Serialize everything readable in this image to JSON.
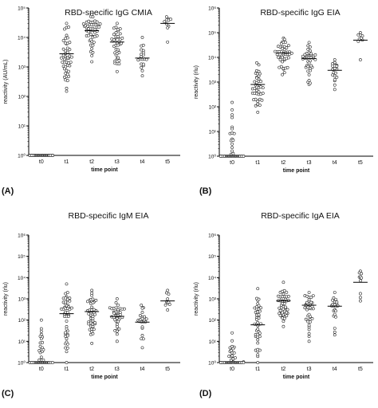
{
  "figure": {
    "colors": {
      "axis": "#000000",
      "marker_stroke": "#222222",
      "marker_fill": "#ffffff",
      "median_line": "#000000"
    }
  },
  "chart_data": [
    {
      "type": "scatter",
      "panel_label": "(A)",
      "title": "RBD-specific IgG CMIA",
      "xlabel": "time point",
      "ylabel": "reactivity (AU/mL)",
      "categories": [
        "t0",
        "t1",
        "t2",
        "t3",
        "t4",
        "t5"
      ],
      "scale": "log10",
      "ylim": [
        1,
        100000
      ],
      "yticks": [
        1,
        10,
        100,
        1000,
        10000,
        100000
      ],
      "ytick_labels": [
        "10⁰",
        "10¹",
        "10²",
        "10³",
        "10⁴",
        "10⁵"
      ],
      "series": [
        {
          "category": "t0",
          "n": 40,
          "median": 1,
          "min": 1,
          "max": 1
        },
        {
          "category": "t1",
          "n": 48,
          "median": 2800,
          "min": 150,
          "max": 30000
        },
        {
          "category": "t2",
          "n": 50,
          "median": 17000,
          "min": 1500,
          "max": 60000
        },
        {
          "category": "t3",
          "n": 40,
          "median": 7000,
          "min": 700,
          "max": 30000
        },
        {
          "category": "t4",
          "n": 20,
          "median": 2000,
          "min": 500,
          "max": 10000
        },
        {
          "category": "t5",
          "n": 10,
          "median": 30000,
          "min": 7000,
          "max": 50000
        }
      ]
    },
    {
      "type": "scatter",
      "panel_label": "(B)",
      "title": "RBD-specific IgG EIA",
      "xlabel": "time point",
      "ylabel": "reactivity (rlu)",
      "categories": [
        "t0",
        "t1",
        "t2",
        "t3",
        "t4",
        "t5"
      ],
      "scale": "log10",
      "ylim": [
        1,
        1000000
      ],
      "yticks": [
        1,
        10,
        100,
        1000,
        10000,
        100000,
        1000000
      ],
      "ytick_labels": [
        "10⁰",
        "10¹",
        "10²",
        "10³",
        "10⁴",
        "10⁵",
        "10⁶"
      ],
      "series": [
        {
          "category": "t0",
          "n": 42,
          "median": 1,
          "min": 1,
          "max": 150
        },
        {
          "category": "t1",
          "n": 42,
          "median": 800,
          "min": 60,
          "max": 6000
        },
        {
          "category": "t2",
          "n": 46,
          "median": 15000,
          "min": 2000,
          "max": 60000
        },
        {
          "category": "t3",
          "n": 38,
          "median": 9000,
          "min": 800,
          "max": 40000
        },
        {
          "category": "t4",
          "n": 20,
          "median": 3000,
          "min": 500,
          "max": 8000
        },
        {
          "category": "t5",
          "n": 10,
          "median": 50000,
          "min": 8000,
          "max": 100000
        }
      ]
    },
    {
      "type": "scatter",
      "panel_label": "(C)",
      "title": "RBD-specific IgM EIA",
      "xlabel": "time point",
      "ylabel": "reactivity (rlu)",
      "categories": [
        "t0",
        "t1",
        "t2",
        "t3",
        "t4",
        "t5"
      ],
      "scale": "log10",
      "ylim": [
        1,
        1000000
      ],
      "yticks": [
        1,
        10,
        100,
        1000,
        10000,
        100000,
        1000000
      ],
      "ytick_labels": [
        "10⁰",
        "10¹",
        "10²",
        "10³",
        "10⁴",
        "10⁵",
        "10⁶"
      ],
      "series": [
        {
          "category": "t0",
          "n": 42,
          "median": 1,
          "min": 1,
          "max": 100
        },
        {
          "category": "t1",
          "n": 48,
          "median": 200,
          "min": 1,
          "max": 5000
        },
        {
          "category": "t2",
          "n": 46,
          "median": 250,
          "min": 8,
          "max": 2500
        },
        {
          "category": "t3",
          "n": 38,
          "median": 150,
          "min": 10,
          "max": 1000
        },
        {
          "category": "t4",
          "n": 22,
          "median": 80,
          "min": 5,
          "max": 500
        },
        {
          "category": "t5",
          "n": 10,
          "median": 800,
          "min": 300,
          "max": 2500
        }
      ]
    },
    {
      "type": "scatter",
      "panel_label": "(D)",
      "title": "RBD-specific IgA EIA",
      "xlabel": "time point",
      "ylabel": "reactivity (rlu)",
      "categories": [
        "t0",
        "t1",
        "t2",
        "t3",
        "t4",
        "t5"
      ],
      "scale": "log10",
      "ylim": [
        1,
        1000000
      ],
      "yticks": [
        1,
        10,
        100,
        1000,
        10000,
        100000,
        1000000
      ],
      "ytick_labels": [
        "10⁰",
        "10¹",
        "10²",
        "10³",
        "10⁴",
        "10⁵",
        "10⁶"
      ],
      "series": [
        {
          "category": "t0",
          "n": 42,
          "median": 1,
          "min": 1,
          "max": 25
        },
        {
          "category": "t1",
          "n": 44,
          "median": 60,
          "min": 1,
          "max": 3000
        },
        {
          "category": "t2",
          "n": 48,
          "median": 800,
          "min": 50,
          "max": 6000
        },
        {
          "category": "t3",
          "n": 38,
          "median": 500,
          "min": 10,
          "max": 2000
        },
        {
          "category": "t4",
          "n": 22,
          "median": 450,
          "min": 20,
          "max": 2000
        },
        {
          "category": "t5",
          "n": 10,
          "median": 6000,
          "min": 800,
          "max": 20000
        }
      ]
    }
  ]
}
